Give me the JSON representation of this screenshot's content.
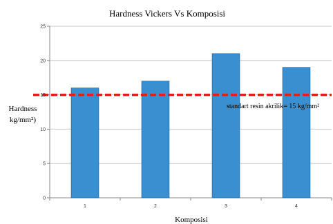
{
  "chart_data": {
    "type": "bar",
    "title": "Hardness Vickers Vs Komposisi",
    "xlabel": "Komposisi",
    "ylabel_line1": "Hardness",
    "ylabel_line2": "kg/mm²)",
    "categories": [
      "1",
      "2",
      "3",
      "4"
    ],
    "values": [
      16,
      17,
      21,
      19
    ],
    "ylim": [
      0,
      25
    ],
    "yticks": [
      0,
      5,
      10,
      15,
      20,
      25
    ],
    "grid": true,
    "bar_color": "#3a8fd0",
    "bar_stroke": "#2a6ea6",
    "reference_line": {
      "value": 15,
      "color": "#e0201c",
      "style": "dashed",
      "label": "standart resin akrilik= 15 kg/mm²"
    }
  }
}
